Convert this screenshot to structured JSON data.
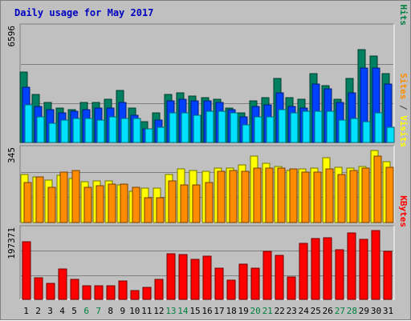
{
  "chart_data": {
    "type": "bar",
    "title": "Daily usage for May 2017",
    "x": [
      "1",
      "2",
      "3",
      "4",
      "5",
      "6",
      "7",
      "8",
      "9",
      "10",
      "11",
      "12",
      "13",
      "14",
      "15",
      "16",
      "17",
      "18",
      "19",
      "20",
      "21",
      "22",
      "23",
      "24",
      "25",
      "26",
      "27",
      "28",
      "29",
      "30",
      "31"
    ],
    "weekend_days": [
      "6",
      "7",
      "13",
      "14",
      "20",
      "21",
      "27",
      "28"
    ],
    "panels": [
      {
        "name": "hits_files_pages",
        "max_label": "6596",
        "ylim": [
          0,
          6596
        ],
        "right_label": [
          {
            "text": "Pages",
            "color": "#00c8f0"
          },
          {
            "text": " / ",
            "color": "#404040"
          },
          {
            "text": "Files",
            "color": "#0040ff"
          },
          {
            "text": " / ",
            "color": "#404040"
          },
          {
            "text": "Hits",
            "color": "#008040"
          }
        ],
        "series": [
          {
            "name": "Hits",
            "color": "#008060",
            "values": [
              4100,
              2800,
              2300,
              2000,
              1900,
              2300,
              2300,
              2500,
              3000,
              2000,
              1200,
              1700,
              2800,
              2900,
              2700,
              2600,
              2500,
              2000,
              1700,
              2400,
              2600,
              3700,
              2600,
              2500,
              4000,
              3300,
              2500,
              3700,
              5400,
              5000,
              4000
            ]
          },
          {
            "name": "Files",
            "color": "#0040ff",
            "values": [
              3200,
              2100,
              1900,
              1700,
              1800,
              1900,
              2000,
              2000,
              2300,
              1600,
              800,
              1300,
              2400,
              2500,
              2400,
              2400,
              2300,
              1900,
              1500,
              2100,
              2200,
              2900,
              2100,
              2000,
              3400,
              3100,
              2300,
              2900,
              4300,
              4300,
              3400
            ]
          },
          {
            "name": "Pages",
            "color": "#00e0ff",
            "values": [
              2200,
              1500,
              1100,
              1300,
              1400,
              1400,
              1300,
              1500,
              1400,
              1400,
              800,
              900,
              1700,
              1700,
              1600,
              1800,
              1800,
              1700,
              1000,
              1500,
              1500,
              1900,
              1700,
              1800,
              1800,
              1800,
              1300,
              1400,
              1200,
              1700,
              900
            ]
          }
        ]
      },
      {
        "name": "visits_sites",
        "max_label": "345",
        "ylim": [
          0,
          345
        ],
        "right_label": [
          {
            "text": "Sites",
            "color": "#ff8c00"
          },
          {
            "text": " / ",
            "color": "#404040"
          },
          {
            "text": "Visits",
            "color": "#ffff00"
          }
        ],
        "series": [
          {
            "name": "Visits",
            "color": "#ffff00",
            "values": [
              230,
              220,
              205,
              225,
              210,
              195,
              200,
              200,
              180,
              150,
              165,
              165,
              230,
              255,
              250,
              245,
              260,
              260,
              275,
              320,
              285,
              270,
              250,
              255,
              260,
              310,
              265,
              260,
              270,
              345,
              290
            ]
          },
          {
            "name": "Sites",
            "color": "#ff8c00",
            "values": [
              190,
              220,
              170,
              240,
              250,
              170,
              175,
              185,
              185,
              170,
              120,
              120,
              200,
              180,
              180,
              190,
              245,
              250,
              245,
              260,
              260,
              260,
              255,
              240,
              240,
              255,
              230,
              250,
              260,
              320,
              265
            ]
          }
        ]
      },
      {
        "name": "kbytes",
        "max_label": "197371",
        "ylim": [
          0,
          197371
        ],
        "right_label": [
          {
            "text": "KBytes",
            "color": "#ff0000"
          }
        ],
        "series": [
          {
            "name": "KBytes",
            "color": "#ff0000",
            "values": [
              165000,
              61000,
              46000,
              87000,
              57000,
              40000,
              40000,
              40000,
              53000,
              26000,
              34000,
              58000,
              130000,
              129000,
              115000,
              124000,
              89000,
              56000,
              100000,
              90000,
              137000,
              127000,
              64000,
              161000,
              175000,
              177000,
              142000,
              190000,
              172000,
              197000,
              138000
            ]
          }
        ]
      }
    ]
  }
}
